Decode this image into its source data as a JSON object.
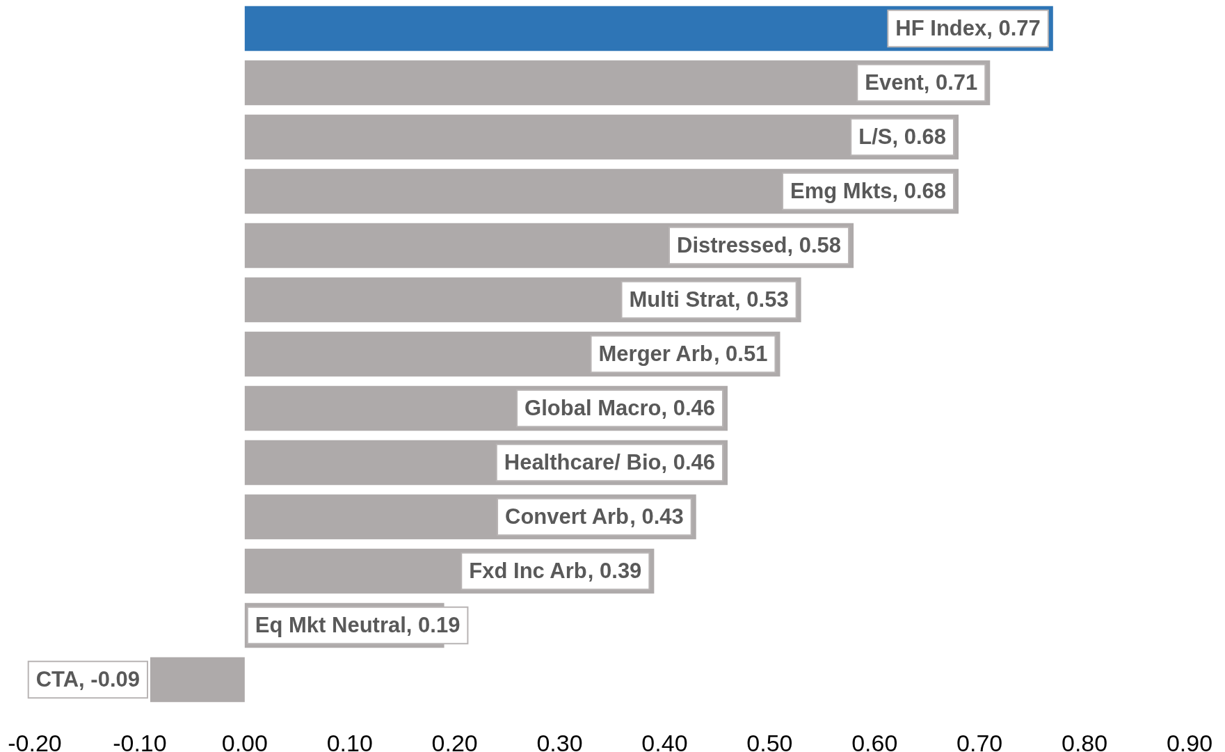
{
  "chart_data": {
    "type": "bar",
    "orientation": "horizontal",
    "categories": [
      "HF Index",
      "Event",
      "L/S",
      "Emg Mkts",
      "Distressed",
      "Multi Strat",
      "Merger Arb",
      "Global Macro",
      "Healthcare/ Bio",
      "Convert Arb",
      "Fxd Inc Arb",
      "Eq Mkt Neutral",
      "CTA"
    ],
    "values": [
      0.77,
      0.71,
      0.68,
      0.68,
      0.58,
      0.53,
      0.51,
      0.46,
      0.46,
      0.43,
      0.39,
      0.19,
      -0.09
    ],
    "colors": [
      "#2e75b6",
      "#aeaaaa",
      "#aeaaaa",
      "#aeaaaa",
      "#aeaaaa",
      "#aeaaaa",
      "#aeaaaa",
      "#aeaaaa",
      "#aeaaaa",
      "#aeaaaa",
      "#aeaaaa",
      "#aeaaaa",
      "#aeaaaa"
    ],
    "value_labels": [
      ", 0.77",
      ", 0.71",
      ", 0.68",
      ", 0.68",
      ", 0.58",
      ", 0.53",
      ", 0.51",
      ", 0.46",
      ", 0.46",
      ", 0.43",
      ", 0.39",
      ", 0.19",
      ", -0.09"
    ],
    "xlim": [
      -0.2,
      0.9
    ],
    "xticks": [
      {
        "value": -0.2,
        "label": "-0.20"
      },
      {
        "value": -0.1,
        "label": "-0.10"
      },
      {
        "value": 0,
        "label": "0.00"
      },
      {
        "value": 0.1,
        "label": "0.10"
      },
      {
        "value": 0.2,
        "label": "0.20"
      },
      {
        "value": 0.3,
        "label": "0.30"
      },
      {
        "value": 0.4,
        "label": "0.40"
      },
      {
        "value": 0.5,
        "label": "0.50"
      },
      {
        "value": 0.6,
        "label": "0.60"
      },
      {
        "value": 0.7,
        "label": "0.70"
      },
      {
        "value": 0.8,
        "label": "0.80"
      },
      {
        "value": 0.9,
        "label": "0.90"
      }
    ],
    "grid": false,
    "legend": false
  }
}
